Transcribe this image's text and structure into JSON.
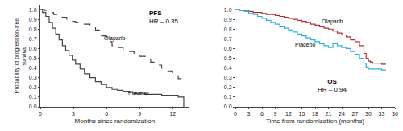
{
  "chart_data": [
    {
      "type": "line",
      "title": "PFS",
      "subtitle": "HR – 0.35",
      "x_label": "Months since randomization",
      "y_label": "Probability of progression-free\nsurvival",
      "xlim": [
        0,
        13.5
      ],
      "ylim": [
        0,
        1.05
      ],
      "xticks": [
        0,
        3,
        6,
        9,
        12
      ],
      "yticks": [
        {
          "value": 0.0,
          "label": "0.0"
        },
        0.1,
        0.2,
        0.3,
        0.4,
        0.5,
        0.6,
        0.7,
        0.8,
        0.9,
        {
          "value": 1.0,
          "label": "1.0"
        }
      ],
      "grid": false,
      "series": [
        {
          "name": "Olaparib",
          "color": "#444444",
          "line_style": "dashed",
          "x": [
            0,
            0.4,
            0.8,
            1.2,
            1.6,
            2.0,
            2.4,
            2.8,
            3.2,
            3.6,
            4.0,
            4.5,
            5.0,
            5.5,
            6.0,
            6.5,
            7.0,
            7.5,
            8.0,
            8.5,
            9.0,
            9.5,
            10.0,
            10.5,
            11.0,
            11.5,
            12.0,
            12.5,
            13.0
          ],
          "values": [
            1.0,
            0.99,
            0.97,
            0.95,
            0.93,
            0.92,
            0.9,
            0.88,
            0.87,
            0.86,
            0.85,
            0.82,
            0.79,
            0.73,
            0.67,
            0.63,
            0.61,
            0.59,
            0.57,
            0.55,
            0.52,
            0.49,
            0.46,
            0.43,
            0.4,
            0.37,
            0.32,
            0.29,
            0.28
          ]
        },
        {
          "name": "Placebo",
          "color": "#444444",
          "line_style": "solid",
          "x": [
            0,
            0.2,
            0.5,
            0.8,
            1.1,
            1.4,
            1.7,
            2.0,
            2.3,
            2.6,
            2.9,
            3.2,
            3.6,
            4.0,
            4.5,
            5.0,
            5.5,
            6.0,
            6.5,
            7.0,
            7.5,
            8.0,
            8.5,
            9.0,
            9.5,
            10.0,
            11.0,
            12.0,
            12.5,
            13.0
          ],
          "values": [
            1.0,
            0.97,
            0.93,
            0.87,
            0.81,
            0.75,
            0.69,
            0.63,
            0.58,
            0.53,
            0.48,
            0.44,
            0.39,
            0.34,
            0.3,
            0.26,
            0.23,
            0.2,
            0.18,
            0.17,
            0.16,
            0.15,
            0.14,
            0.14,
            0.13,
            0.13,
            0.12,
            0.12,
            0.1,
            0.0
          ]
        }
      ],
      "annotations": [
        {
          "text": "Olaparib",
          "x": 5.6,
          "y": 0.65
        },
        {
          "text": "Placebo",
          "x": 7.8,
          "y": 0.19
        }
      ]
    },
    {
      "type": "line",
      "title": "OS",
      "subtitle": "HR – 0.94",
      "x_label": "Time from randomization (months)",
      "xlim": [
        0,
        36
      ],
      "ylim": [
        0,
        1.05
      ],
      "xticks": [
        0,
        3,
        6,
        9,
        12,
        15,
        18,
        21,
        24,
        27,
        30,
        33,
        36
      ],
      "yticks": [
        {
          "value": 0.0,
          "label": "0.0"
        },
        0.1,
        0.2,
        0.3,
        0.4,
        0.5,
        0.6,
        0.7,
        0.8,
        0.9,
        {
          "value": 1.0,
          "label": "1.0"
        }
      ],
      "grid": false,
      "series": [
        {
          "name": "Olaparib",
          "color": "#b03030",
          "line_style": "solid",
          "x": [
            0,
            0.5,
            1,
            1.5,
            2,
            3,
            4,
            5,
            6,
            7,
            8,
            9,
            10,
            11,
            12,
            13,
            14,
            15,
            16,
            17,
            18,
            19,
            20,
            21,
            22,
            23,
            24,
            25,
            26,
            27,
            28,
            29,
            29.5,
            30,
            30.5,
            31,
            33,
            34
          ],
          "values": [
            1.0,
            1.0,
            0.99,
            0.99,
            0.99,
            0.98,
            0.97,
            0.97,
            0.96,
            0.95,
            0.95,
            0.94,
            0.93,
            0.92,
            0.91,
            0.9,
            0.89,
            0.88,
            0.87,
            0.85,
            0.84,
            0.83,
            0.81,
            0.8,
            0.78,
            0.76,
            0.74,
            0.72,
            0.69,
            0.67,
            0.63,
            0.55,
            0.5,
            0.47,
            0.46,
            0.45,
            0.44,
            0.44
          ]
        },
        {
          "name": "Placebo",
          "color": "#30b0d8",
          "line_style": "solid",
          "x": [
            0,
            1,
            2,
            3,
            4,
            5,
            6,
            7,
            8,
            9,
            10,
            11,
            12,
            13,
            14,
            15,
            16,
            17,
            18,
            19,
            20,
            21,
            22,
            23,
            24,
            25,
            26,
            27,
            28,
            29,
            29.5,
            30,
            33,
            34
          ],
          "values": [
            1.0,
            0.99,
            0.98,
            0.96,
            0.95,
            0.93,
            0.91,
            0.89,
            0.87,
            0.85,
            0.83,
            0.81,
            0.79,
            0.77,
            0.75,
            0.73,
            0.71,
            0.69,
            0.67,
            0.65,
            0.63,
            0.61,
            0.65,
            0.63,
            0.61,
            0.6,
            0.57,
            0.54,
            0.5,
            0.45,
            0.41,
            0.39,
            0.38,
            0.38
          ]
        }
      ],
      "annotations": [
        {
          "text": "Olaparib",
          "x": 19,
          "y": 0.83
        },
        {
          "text": "Placebo",
          "x": 13,
          "y": 0.69
        }
      ]
    }
  ]
}
